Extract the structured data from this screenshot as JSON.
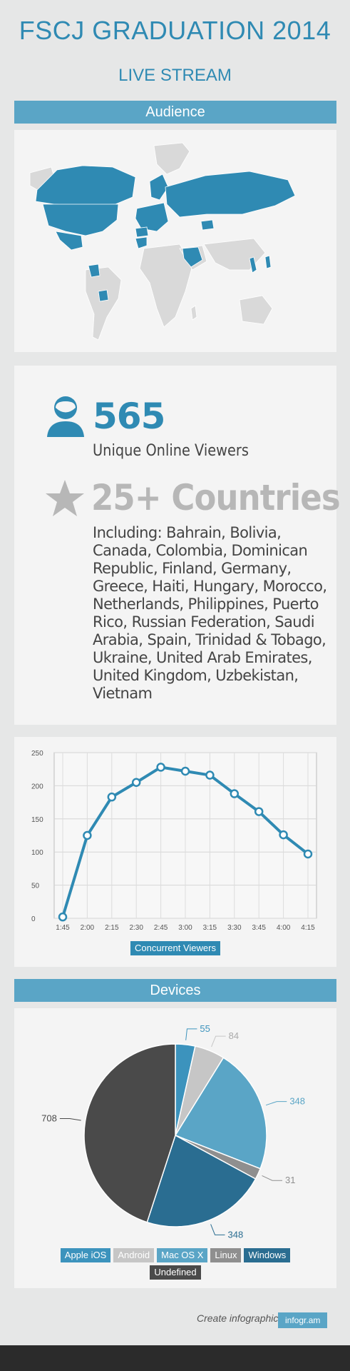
{
  "header": {
    "title": "FSCJ GRADUATION 2014",
    "subtitle": "LIVE STREAM"
  },
  "audience": {
    "section_label": "Audience",
    "map_highlight_color": "#2f8ab3",
    "map_base_color": "#d9d9d9"
  },
  "stats": {
    "viewers_value": "565",
    "viewers_label": "Unique Online Viewers",
    "countries_headline": "25+ Countries",
    "countries_text": "Including: Bahrain, Bolivia, Canada, Colombia, Dominican Republic, Finland, Germany, Greece, Haiti, Hungary, Morocco, Netherlands, Philippines, Puerto Rico, Russian Federation, Saudi Arabia, Spain, Trinidad  & Tobago,  Ukraine, United Arab Emirates, United Kingdom, Uzbekistan, Vietnam",
    "user_icon": "user-icon",
    "star_icon": "star-icon"
  },
  "devices": {
    "section_label": "Devices"
  },
  "footer": {
    "text": "Create infographics",
    "logo": "infogr.am"
  },
  "chart_data": [
    {
      "type": "line",
      "x": [
        "1:45",
        "2:00",
        "2:15",
        "2:30",
        "2:45",
        "3:00",
        "3:15",
        "3:30",
        "3:45",
        "4:00",
        "4:15"
      ],
      "series": [
        {
          "name": "Concurrent Viewers",
          "values": [
            2,
            125,
            183,
            205,
            228,
            222,
            216,
            188,
            161,
            126,
            97
          ],
          "color": "#2f8ab3"
        }
      ],
      "ylim": [
        0,
        250
      ],
      "yticks": [
        0,
        50,
        100,
        150,
        200,
        250
      ],
      "grid": true,
      "legend": "bottom"
    },
    {
      "type": "pie",
      "slices": [
        {
          "name": "Apple iOS",
          "value": 55,
          "label": "55",
          "color": "#3c93bd"
        },
        {
          "name": "Android",
          "value": 84,
          "label": "84",
          "color": "#c6c6c6"
        },
        {
          "name": "Mac OS X",
          "value": 348,
          "label": "348",
          "color": "#5aa5c6"
        },
        {
          "name": "Linux",
          "value": 31,
          "label": "31",
          "color": "#8f8f8f"
        },
        {
          "name": "Windows",
          "value": 348,
          "label": "348",
          "color": "#2a6d91"
        },
        {
          "name": "Undefined",
          "value": 708,
          "label": "708",
          "color": "#4a4a4a"
        }
      ],
      "legend": "bottom"
    }
  ]
}
